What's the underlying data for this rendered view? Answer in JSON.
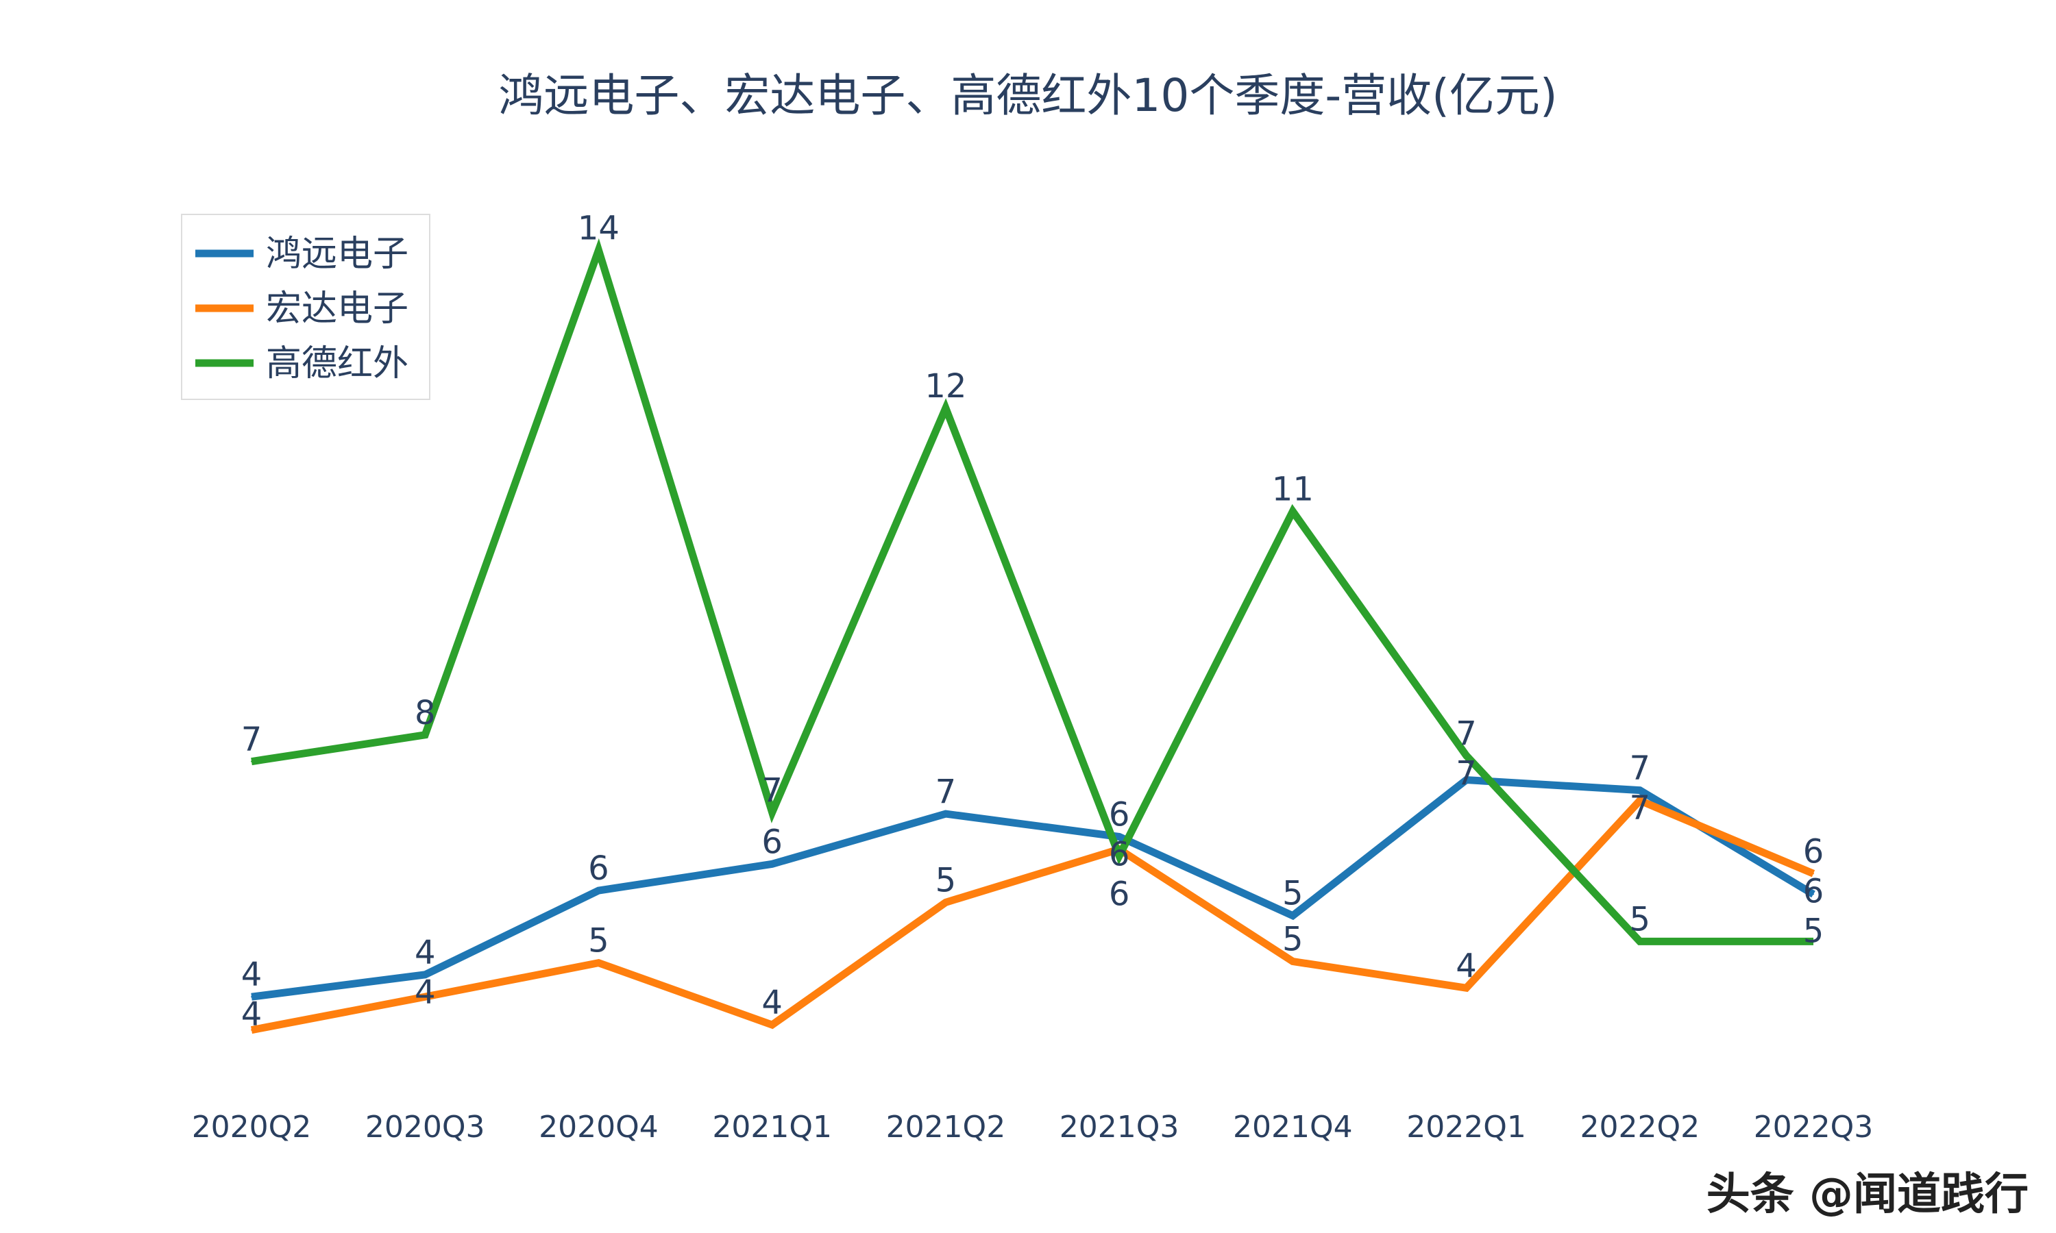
{
  "chart_data": {
    "type": "line",
    "title": "鸿远电子、宏达电子、高德红外10个季度-营收(亿元)",
    "xlabel": "",
    "ylabel": "",
    "categories": [
      "2020Q2",
      "2020Q3",
      "2020Q4",
      "2021Q1",
      "2021Q2",
      "2021Q3",
      "2021Q4",
      "2022Q1",
      "2022Q2",
      "2022Q3"
    ],
    "grid": false,
    "legend_position": "top-left",
    "series": [
      {
        "name": "鸿远电子",
        "color": "#1f77b4",
        "values": [
          4.13,
          4.43,
          5.57,
          5.93,
          6.61,
          6.3,
          5.23,
          7.07,
          6.93,
          5.52
        ],
        "labels": [
          "4",
          "4",
          "6",
          "6",
          "7",
          "6",
          "5",
          "7",
          "7",
          "6"
        ]
      },
      {
        "name": "宏达电子",
        "color": "#ff7f0e",
        "values": [
          3.68,
          4.13,
          4.59,
          3.75,
          5.41,
          6.13,
          4.61,
          4.25,
          6.79,
          5.8
        ],
        "labels": [
          "4",
          "4",
          "5",
          "4",
          "5",
          "6",
          "5",
          "4",
          "7",
          "6"
        ]
      },
      {
        "name": "高德红外",
        "color": "#2ca02c",
        "values": [
          7.32,
          7.68,
          14.25,
          6.63,
          12.11,
          6.04,
          10.71,
          7.4,
          4.88,
          4.88
        ],
        "labels": [
          "7",
          "8",
          "14",
          "7",
          "12",
          "6",
          "11",
          "7",
          "5",
          "5"
        ]
      }
    ]
  },
  "watermark": "头条 @闻道践行"
}
